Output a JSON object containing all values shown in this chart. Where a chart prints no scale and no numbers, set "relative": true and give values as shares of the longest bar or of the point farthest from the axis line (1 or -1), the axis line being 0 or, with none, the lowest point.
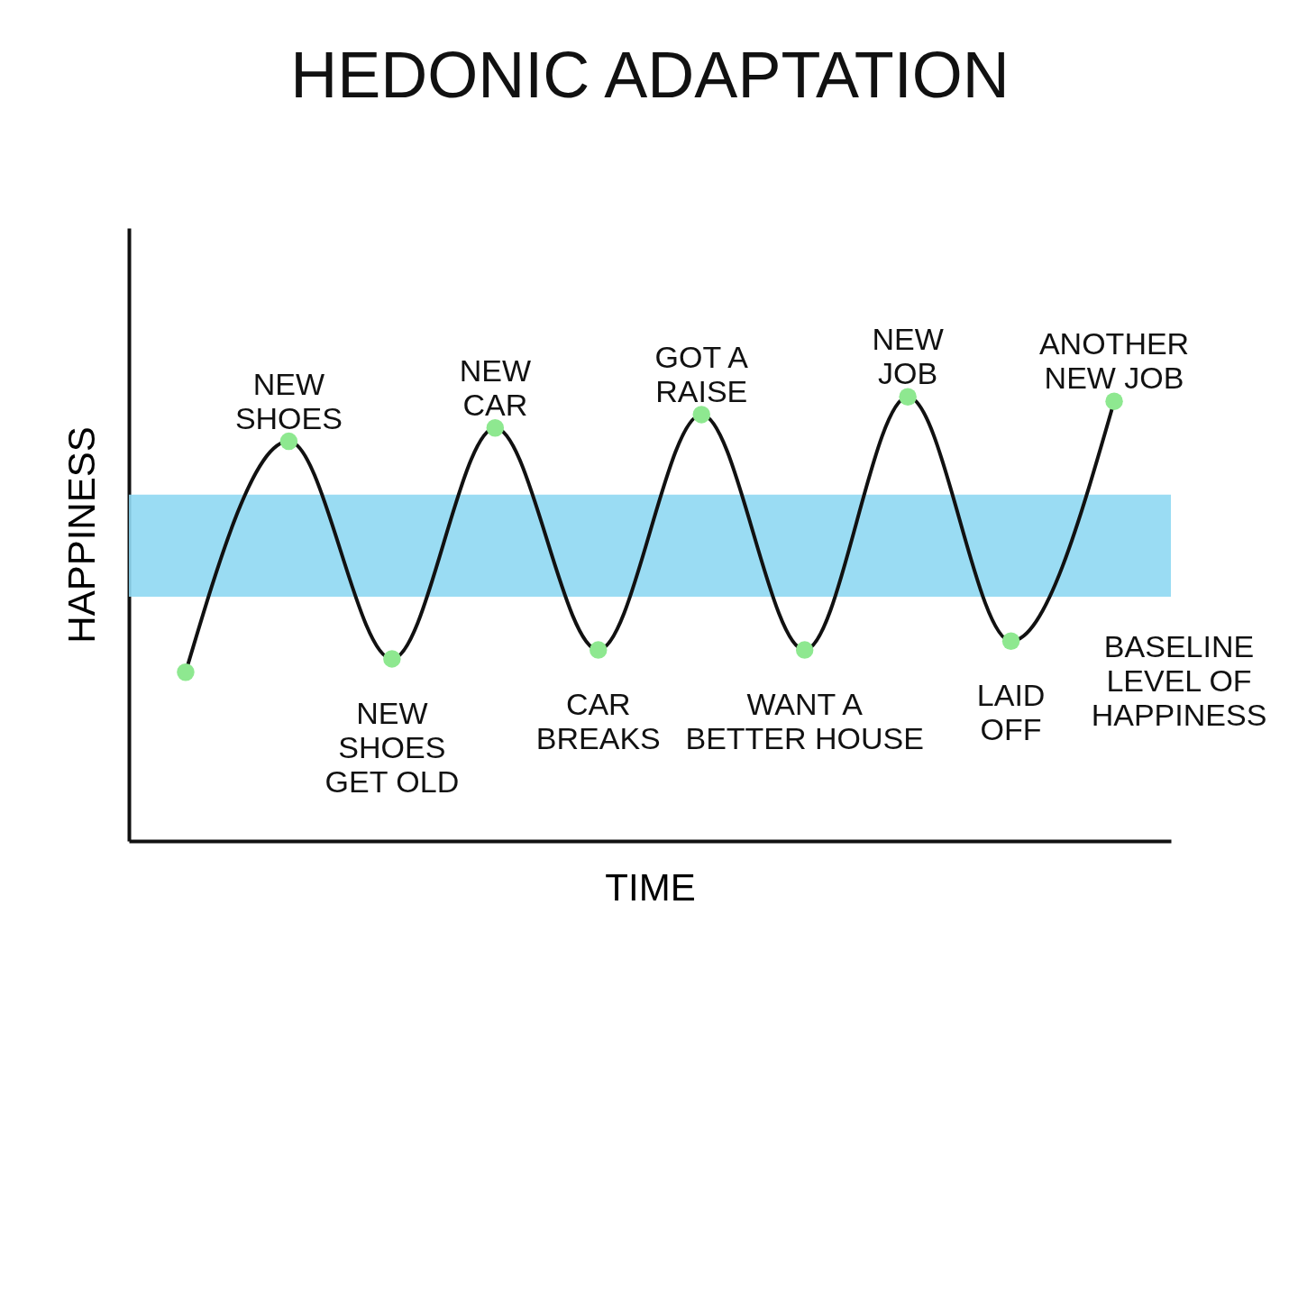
{
  "chart_data": {
    "type": "line",
    "title": "HEDONIC ADAPTATION",
    "xlabel": "TIME",
    "ylabel": "HAPPINESS",
    "relative": true,
    "marker": "circle",
    "categories": [
      null,
      null,
      null,
      null,
      null,
      null,
      null,
      null,
      null,
      null
    ],
    "series": [
      {
        "color": "#111111",
        "values": [
          0.38,
          0.9,
          0.41,
          0.93,
          0.43,
          0.96,
          0.43,
          1.0,
          0.45,
          0.99
        ]
      }
    ],
    "bands": [
      {
        "axis": "y",
        "from": 0.55,
        "to": 0.78,
        "label": "BASELINE\nLEVEL OF\nHAPPINESS",
        "color": "#8fd8f2"
      }
    ],
    "annotations": [
      "NEW\nSHOES",
      "NEW\nSHOES\nGET OLD",
      "NEW\nCAR",
      "CAR\nBREAKS",
      "GOT A\nRAISE",
      "WANT A\nBETTER HOUSE",
      "NEW\nJOB",
      "LAID\nOFF",
      "ANOTHER\nNEW JOB"
    ]
  }
}
